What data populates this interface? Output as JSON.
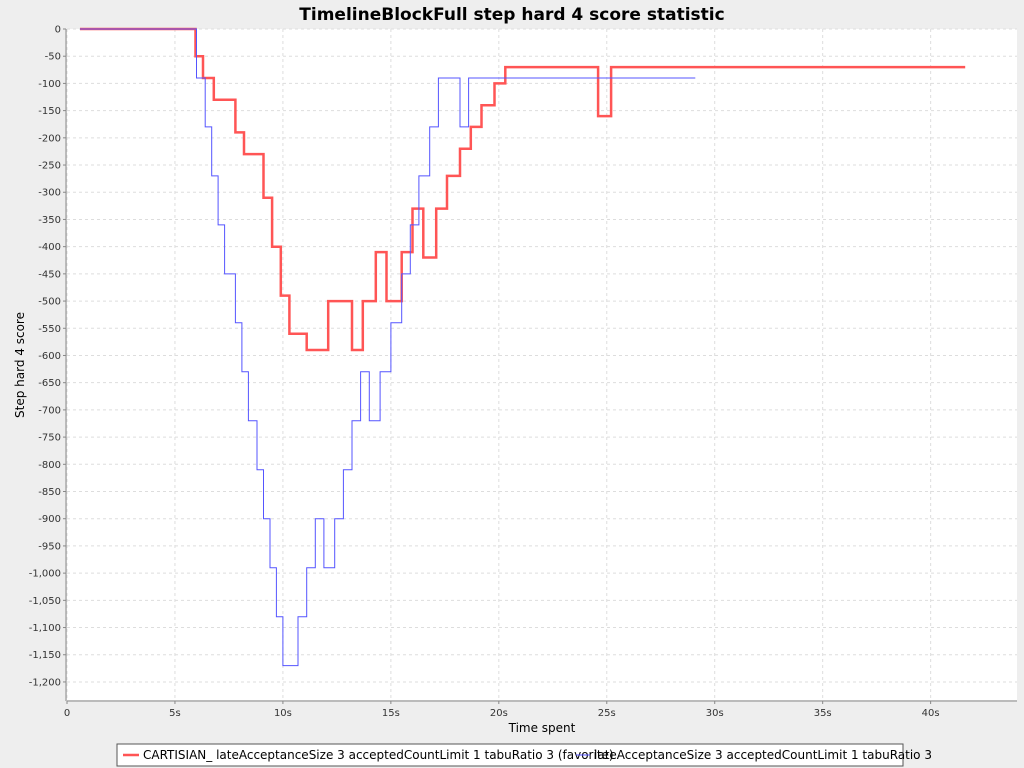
{
  "chart_data": {
    "type": "line",
    "title": "TimelineBlockFull step hard 4 score statistic",
    "xlabel": "Time spent",
    "ylabel": "Step hard 4 score",
    "xlim": [
      0,
      44
    ],
    "ylim": [
      -1235,
      0
    ],
    "x_ticks": [
      {
        "value": 0,
        "label": "0"
      },
      {
        "value": 5,
        "label": "5s"
      },
      {
        "value": 10,
        "label": "10s"
      },
      {
        "value": 15,
        "label": "15s"
      },
      {
        "value": 20,
        "label": "20s"
      },
      {
        "value": 25,
        "label": "25s"
      },
      {
        "value": 30,
        "label": "30s"
      },
      {
        "value": 35,
        "label": "35s"
      },
      {
        "value": 40,
        "label": "40s"
      }
    ],
    "y_ticks": [
      {
        "value": 0,
        "label": "0"
      },
      {
        "value": -50,
        "label": "-50"
      },
      {
        "value": -100,
        "label": "-100"
      },
      {
        "value": -150,
        "label": "-150"
      },
      {
        "value": -200,
        "label": "-200"
      },
      {
        "value": -250,
        "label": "-250"
      },
      {
        "value": -300,
        "label": "-300"
      },
      {
        "value": -350,
        "label": "-350"
      },
      {
        "value": -400,
        "label": "-400"
      },
      {
        "value": -450,
        "label": "-450"
      },
      {
        "value": -500,
        "label": "-500"
      },
      {
        "value": -550,
        "label": "-550"
      },
      {
        "value": -600,
        "label": "-600"
      },
      {
        "value": -650,
        "label": "-650"
      },
      {
        "value": -700,
        "label": "-700"
      },
      {
        "value": -750,
        "label": "-750"
      },
      {
        "value": -800,
        "label": "-800"
      },
      {
        "value": -850,
        "label": "-850"
      },
      {
        "value": -900,
        "label": "-900"
      },
      {
        "value": -950,
        "label": "-950"
      },
      {
        "value": -1000,
        "label": "-1,000"
      },
      {
        "value": -1050,
        "label": "-1,050"
      },
      {
        "value": -1100,
        "label": "-1,100"
      },
      {
        "value": -1150,
        "label": "-1,150"
      },
      {
        "value": -1200,
        "label": "-1,200"
      }
    ],
    "grid": true,
    "legend_position": "bottom",
    "series": [
      {
        "name": "CARTISIAN_ lateAcceptanceSize 3 acceptedCountLimit 1 tabuRatio 3 (favorite)",
        "color": "#ff5555",
        "stroke_width": 2.5,
        "step": true,
        "points": [
          [
            0.6,
            0
          ],
          [
            5.95,
            0
          ],
          [
            5.95,
            -50
          ],
          [
            6.3,
            -50
          ],
          [
            6.3,
            -90
          ],
          [
            6.8,
            -90
          ],
          [
            6.8,
            -130
          ],
          [
            7.8,
            -130
          ],
          [
            7.8,
            -190
          ],
          [
            8.2,
            -190
          ],
          [
            8.2,
            -230
          ],
          [
            9.1,
            -230
          ],
          [
            9.1,
            -310
          ],
          [
            9.5,
            -310
          ],
          [
            9.5,
            -400
          ],
          [
            9.9,
            -400
          ],
          [
            9.9,
            -490
          ],
          [
            10.3,
            -490
          ],
          [
            10.3,
            -560
          ],
          [
            11.1,
            -560
          ],
          [
            11.1,
            -590
          ],
          [
            12.1,
            -590
          ],
          [
            12.1,
            -500
          ],
          [
            13.2,
            -500
          ],
          [
            13.2,
            -590
          ],
          [
            13.7,
            -590
          ],
          [
            13.7,
            -500
          ],
          [
            14.3,
            -500
          ],
          [
            14.3,
            -410
          ],
          [
            14.8,
            -410
          ],
          [
            14.8,
            -500
          ],
          [
            15.5,
            -500
          ],
          [
            15.5,
            -410
          ],
          [
            16.0,
            -410
          ],
          [
            16.0,
            -330
          ],
          [
            16.5,
            -330
          ],
          [
            16.5,
            -420
          ],
          [
            17.1,
            -420
          ],
          [
            17.1,
            -330
          ],
          [
            17.6,
            -330
          ],
          [
            17.6,
            -270
          ],
          [
            18.2,
            -270
          ],
          [
            18.2,
            -220
          ],
          [
            18.7,
            -220
          ],
          [
            18.7,
            -180
          ],
          [
            19.2,
            -180
          ],
          [
            19.2,
            -140
          ],
          [
            19.8,
            -140
          ],
          [
            19.8,
            -100
          ],
          [
            20.3,
            -100
          ],
          [
            20.3,
            -70
          ],
          [
            24.6,
            -70
          ],
          [
            24.6,
            -160
          ],
          [
            25.2,
            -160
          ],
          [
            25.2,
            -70
          ],
          [
            41.6,
            -70
          ]
        ]
      },
      {
        "name": "lateAcceptanceSize 3 acceptedCountLimit 1 tabuRatio 3",
        "color": "#5555ff",
        "stroke_width": 1,
        "step": true,
        "points": [
          [
            0.6,
            0
          ],
          [
            6.0,
            0
          ],
          [
            6.0,
            -90
          ],
          [
            6.4,
            -90
          ],
          [
            6.4,
            -180
          ],
          [
            6.7,
            -180
          ],
          [
            6.7,
            -270
          ],
          [
            7.0,
            -270
          ],
          [
            7.0,
            -360
          ],
          [
            7.3,
            -360
          ],
          [
            7.3,
            -450
          ],
          [
            7.8,
            -450
          ],
          [
            7.8,
            -540
          ],
          [
            8.1,
            -540
          ],
          [
            8.1,
            -630
          ],
          [
            8.4,
            -630
          ],
          [
            8.4,
            -720
          ],
          [
            8.8,
            -720
          ],
          [
            8.8,
            -810
          ],
          [
            9.1,
            -810
          ],
          [
            9.1,
            -900
          ],
          [
            9.4,
            -900
          ],
          [
            9.4,
            -990
          ],
          [
            9.7,
            -990
          ],
          [
            9.7,
            -1080
          ],
          [
            10.0,
            -1080
          ],
          [
            10.0,
            -1170
          ],
          [
            10.7,
            -1170
          ],
          [
            10.7,
            -1080
          ],
          [
            11.1,
            -1080
          ],
          [
            11.1,
            -990
          ],
          [
            11.5,
            -990
          ],
          [
            11.5,
            -900
          ],
          [
            11.9,
            -900
          ],
          [
            11.9,
            -990
          ],
          [
            12.4,
            -990
          ],
          [
            12.4,
            -900
          ],
          [
            12.8,
            -900
          ],
          [
            12.8,
            -810
          ],
          [
            13.2,
            -810
          ],
          [
            13.2,
            -720
          ],
          [
            13.6,
            -720
          ],
          [
            13.6,
            -630
          ],
          [
            14.0,
            -630
          ],
          [
            14.0,
            -720
          ],
          [
            14.5,
            -720
          ],
          [
            14.5,
            -630
          ],
          [
            15.0,
            -630
          ],
          [
            15.0,
            -540
          ],
          [
            15.5,
            -540
          ],
          [
            15.5,
            -450
          ],
          [
            15.9,
            -450
          ],
          [
            15.9,
            -360
          ],
          [
            16.3,
            -360
          ],
          [
            16.3,
            -270
          ],
          [
            16.8,
            -270
          ],
          [
            16.8,
            -180
          ],
          [
            17.2,
            -180
          ],
          [
            17.2,
            -90
          ],
          [
            18.2,
            -90
          ],
          [
            18.2,
            -180
          ],
          [
            18.6,
            -180
          ],
          [
            18.6,
            -90
          ],
          [
            29.1,
            -90
          ]
        ]
      }
    ]
  }
}
